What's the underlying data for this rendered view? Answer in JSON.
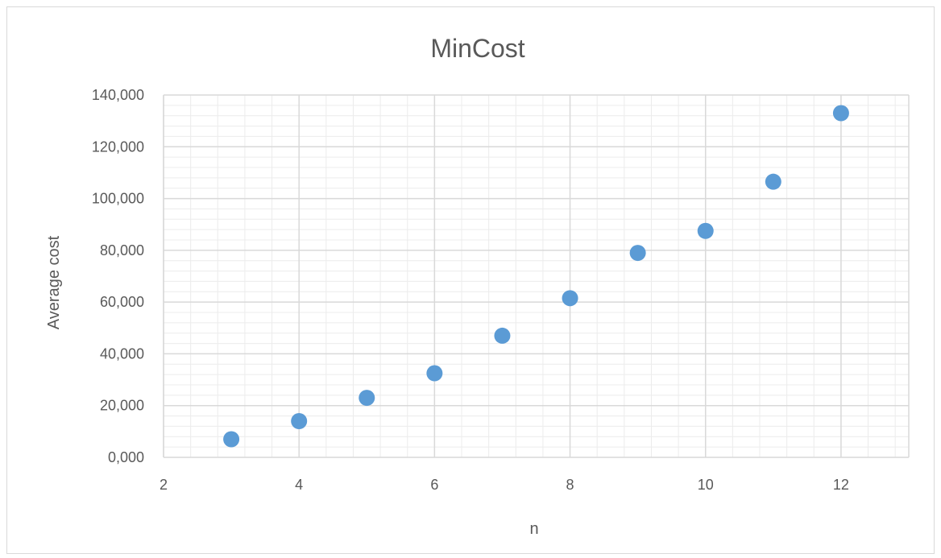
{
  "chart_data": {
    "type": "scatter",
    "title": "MinCost",
    "xlabel": "n",
    "ylabel": "Average cost",
    "xlim": [
      2,
      13
    ],
    "ylim": [
      0,
      140000
    ],
    "x_ticks": [
      2,
      4,
      6,
      8,
      10,
      12
    ],
    "x_tick_labels": [
      "2",
      "4",
      "6",
      "8",
      "10",
      "12"
    ],
    "y_ticks": [
      0,
      20000,
      40000,
      60000,
      80000,
      100000,
      120000,
      140000
    ],
    "y_tick_labels": [
      "0,000",
      "20,000",
      "40,000",
      "60,000",
      "80,000",
      "100,000",
      "120,000",
      "140,000"
    ],
    "grid": {
      "major": true,
      "minor": true
    },
    "legend": "none",
    "colors": {
      "marker": "#5b9bd5",
      "major_grid": "#d9d9d9",
      "minor_grid": "#ececec",
      "text": "#595959"
    },
    "series": [
      {
        "x": [
          3,
          4,
          5,
          6,
          7,
          8,
          9,
          10,
          11,
          12
        ],
        "values": [
          7000,
          14000,
          23000,
          32500,
          47000,
          61500,
          79000,
          87500,
          106500,
          133000
        ]
      }
    ]
  }
}
